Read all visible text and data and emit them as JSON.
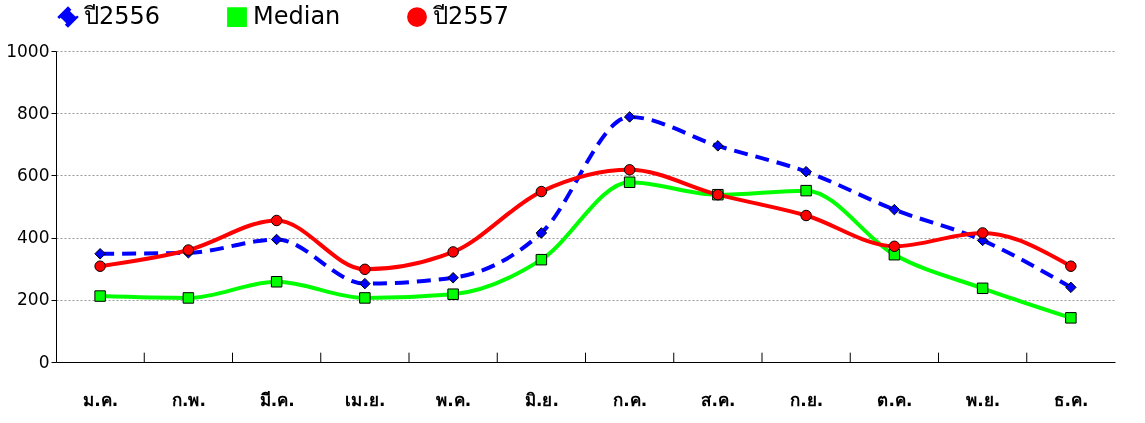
{
  "chart_data": {
    "type": "line",
    "categories": [
      "ม.ค.",
      "ก.พ.",
      "มี.ค.",
      "เม.ย.",
      "พ.ค.",
      "มิ.ย.",
      "ก.ค.",
      "ส.ค.",
      "ก.ย.",
      "ต.ค.",
      "พ.ย.",
      "ธ.ค."
    ],
    "series": [
      {
        "name": "ปี2556",
        "color": "#0000ff",
        "marker": "diamond",
        "line_style": "dashed",
        "values": [
          348,
          351,
          394,
          252,
          271,
          415,
          788,
          695,
          612,
          490,
          391,
          240
        ]
      },
      {
        "name": "Median",
        "color": "#00ff00",
        "marker": "square",
        "line_style": "solid",
        "values": [
          212,
          206,
          258,
          206,
          218,
          329,
          578,
          538,
          551,
          345,
          237,
          142
        ]
      },
      {
        "name": "ปี2557",
        "color": "#ff0000",
        "marker": "circle",
        "line_style": "solid",
        "values": [
          308,
          360,
          455,
          298,
          354,
          548,
          618,
          538,
          471,
          372,
          415,
          308
        ]
      }
    ],
    "ylim": [
      0,
      1000
    ],
    "yticks": [
      0,
      200,
      400,
      600,
      800,
      1000
    ],
    "grid": "y",
    "legend": "top"
  }
}
